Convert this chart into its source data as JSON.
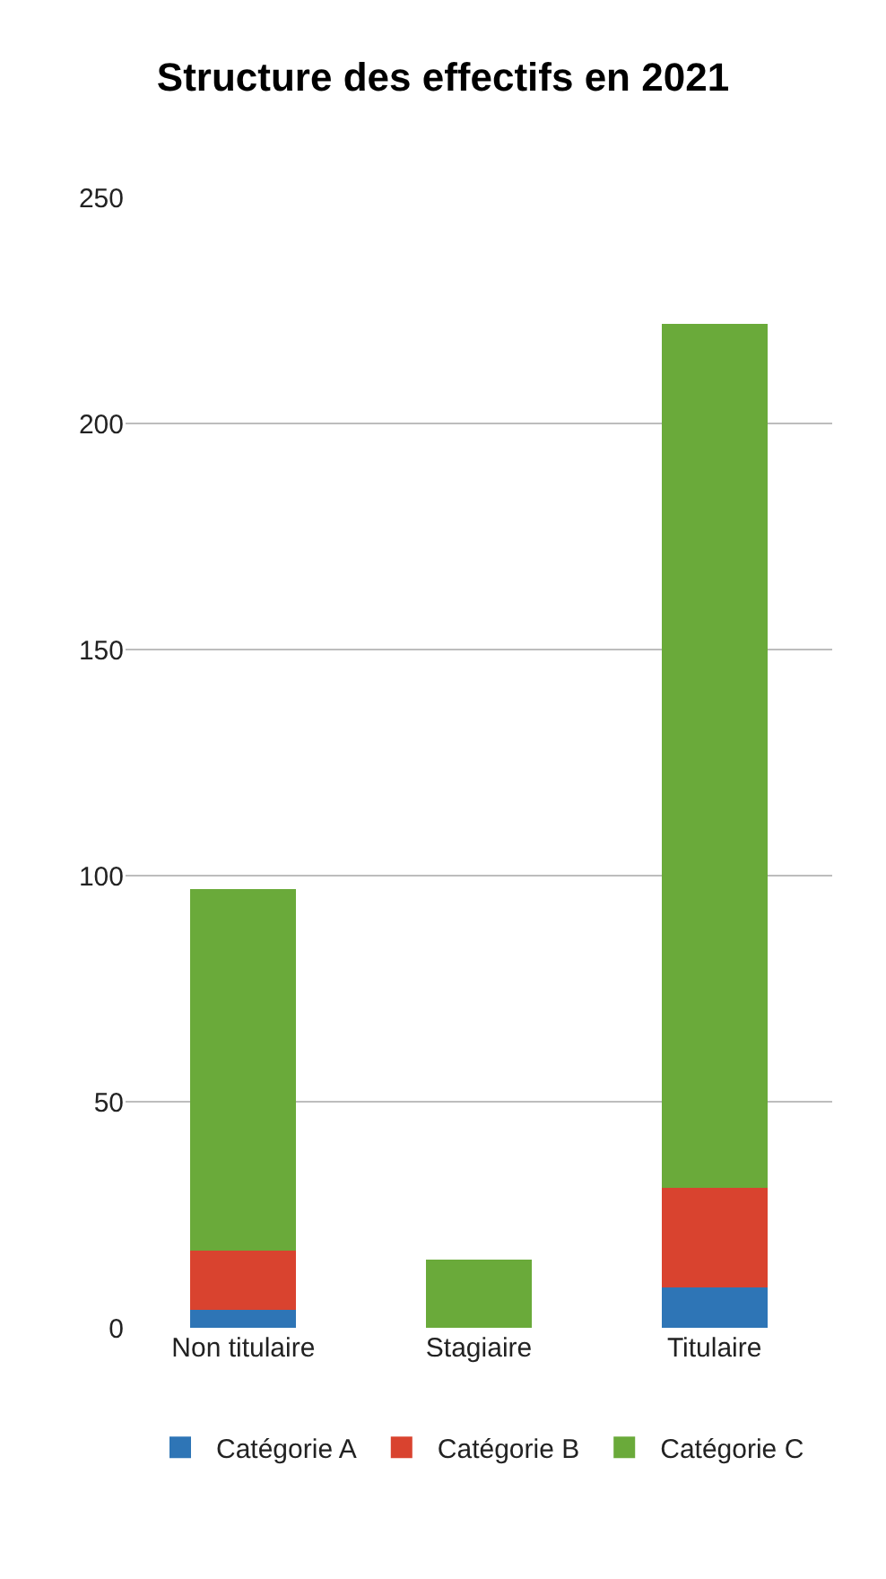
{
  "chart_data": {
    "type": "bar",
    "title": "Structure des effectifs en 2021",
    "categories": [
      "Non titulaire",
      "Stagiaire",
      "Titulaire"
    ],
    "stacked": true,
    "series": [
      {
        "name": "Catégorie A",
        "color": "#2e75b6",
        "values": [
          4,
          0,
          9
        ]
      },
      {
        "name": "Catégorie B",
        "color": "#d9432f",
        "values": [
          13,
          0,
          22
        ]
      },
      {
        "name": "Catégorie C",
        "color": "#6aaa3a",
        "values": [
          80,
          15,
          191
        ]
      }
    ],
    "ylim": [
      0,
      250
    ],
    "yticks": [
      0,
      50,
      100,
      150,
      200,
      250
    ],
    "grid": "y",
    "legend": "bottom"
  }
}
